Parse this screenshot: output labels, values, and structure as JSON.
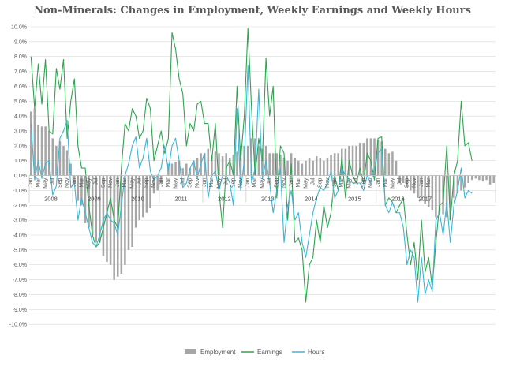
{
  "chart_data": {
    "type": "bar+line",
    "title": "Non-Minerals: Changes in Employment, Weekly Earnings and Weekly Hours",
    "ylabel": "",
    "xlabel": "",
    "ylim": [
      -0.11,
      0.1
    ],
    "ytick_values": [
      0.1,
      0.09,
      0.08,
      0.07,
      0.06,
      0.05,
      0.04,
      0.03,
      0.02,
      0.01,
      0.0,
      -0.01,
      -0.02,
      -0.03,
      -0.04,
      -0.05,
      -0.06,
      -0.07,
      -0.08,
      -0.09,
      -0.1
    ],
    "ytick_labels": [
      "10.0%",
      "9.0%",
      "8.0%",
      "7.0%",
      "6.0%",
      "5.0%",
      "4.0%",
      "3.0%",
      "2.0%",
      "1.0%",
      "0.0%",
      "-1.0%",
      "-2.0%",
      "-3.0%",
      "-4.0%",
      "-5.0%",
      "-6.0%",
      "-7.0%",
      "-8.0%",
      "-9.0%",
      "-10.0%"
    ],
    "months": [
      "Jan",
      "Mar",
      "May",
      "Jul",
      "Sep",
      "Nov"
    ],
    "month_label_indices": [
      0,
      2,
      4,
      6,
      8,
      10
    ],
    "years": [
      "2008",
      "2009",
      "2010",
      "2011",
      "2012",
      "2013",
      "2014",
      "2015",
      "2016",
      "2017"
    ],
    "months_in_year": [
      12,
      12,
      12,
      12,
      12,
      12,
      12,
      12,
      12,
      3
    ],
    "legend": [
      "Employment",
      "Earnings",
      "Hours"
    ],
    "legend_position": "bottom",
    "colors": {
      "Employment": "#a6a6a6",
      "Earnings": "#2ea44f",
      "Hours": "#3db5d6",
      "grid": "#d9d9d9",
      "axis": "#bfbfbf"
    },
    "series": [
      {
        "name": "Employment",
        "kind": "bar",
        "values": [
          4.3,
          4.5,
          3.4,
          3.3,
          3.3,
          3.0,
          2.5,
          2.0,
          2.3,
          2.0,
          1.7,
          0.8,
          -0.5,
          -1.7,
          -2.0,
          -3.2,
          -3.5,
          -4.0,
          -4.5,
          -4.5,
          -5.4,
          -5.8,
          -6.0,
          -7.0,
          -6.8,
          -6.6,
          -6.0,
          -5.0,
          -4.8,
          -3.5,
          -3.0,
          -2.8,
          -2.5,
          -2.2,
          -1.2,
          -1.0,
          -0.5,
          0.0,
          0.8,
          0.8,
          0.9,
          1.0,
          0.5,
          0.8,
          0.5,
          1.0,
          1.2,
          1.5,
          1.5,
          1.8,
          1.3,
          1.6,
          1.5,
          1.3,
          1.5,
          1.2,
          1.4,
          1.6,
          2.0,
          2.0,
          2.0,
          2.5,
          2.5,
          2.0,
          1.8,
          2.0,
          1.5,
          1.5,
          1.5,
          1.4,
          1.2,
          1.0,
          1.5,
          1.2,
          1.0,
          0.8,
          1.0,
          1.2,
          1.0,
          1.3,
          1.2,
          1.0,
          1.2,
          1.4,
          1.5,
          1.5,
          1.8,
          1.8,
          2.0,
          2.0,
          2.0,
          2.2,
          2.2,
          2.5,
          2.5,
          2.5,
          2.4,
          2.3,
          1.8,
          1.5,
          1.6,
          1.0,
          -0.5,
          -0.5,
          -0.8,
          -1.0,
          -1.2,
          -1.5,
          -1.7,
          -1.9,
          -2.1,
          -2.3,
          -2.8,
          -2.5,
          -2.6,
          -2.8,
          -3.0,
          -1.5,
          -1.2,
          -1.0,
          -0.8,
          -0.5,
          -0.3,
          -0.2,
          -0.3,
          -0.4,
          -0.3,
          -0.6,
          -0.5
        ]
      },
      {
        "name": "Earnings",
        "kind": "line",
        "values": [
          8.0,
          4.5,
          7.5,
          4.8,
          7.8,
          3.0,
          2.8,
          7.2,
          5.8,
          7.8,
          2.5,
          5.0,
          6.5,
          2.0,
          0.5,
          0.5,
          -2.0,
          -4.0,
          -4.8,
          -4.5,
          -3.5,
          -2.5,
          -1.5,
          -3.0,
          -3.5,
          0.5,
          3.5,
          3.0,
          4.5,
          4.0,
          2.5,
          3.0,
          5.2,
          4.5,
          1.0,
          2.0,
          3.0,
          1.5,
          2.5,
          9.6,
          8.5,
          6.5,
          5.5,
          2.0,
          3.5,
          3.0,
          4.8,
          5.0,
          3.5,
          3.5,
          1.0,
          3.5,
          -1.0,
          -3.5,
          0.5,
          1.0,
          0.0,
          6.0,
          1.0,
          4.0,
          9.9,
          4.5,
          0.0,
          2.5,
          1.0,
          7.9,
          4.0,
          6.0,
          -1.5,
          2.0,
          1.5,
          -3.0,
          0.8,
          -4.5,
          -4.2,
          -5.0,
          -8.5,
          -6.0,
          -5.5,
          -3.0,
          -4.5,
          -2.0,
          -3.5,
          -2.5,
          0.0,
          -1.0,
          1.2,
          -1.5,
          1.0,
          0.0,
          -0.5,
          0.5,
          -0.5,
          1.5,
          1.0,
          -0.3,
          2.5,
          2.6,
          -2.0,
          -1.5,
          -1.8,
          -2.5,
          -2.0,
          -1.5,
          -4.0,
          -6.0,
          -4.5,
          -7.0,
          -3.0,
          -6.5,
          -5.5,
          -7.5,
          -4.5,
          -2.0,
          -1.8,
          2.0,
          -3.0,
          0.0,
          1.0,
          5.0,
          2.0,
          2.2,
          1.0
        ]
      },
      {
        "name": "Hours",
        "kind": "line",
        "values": [
          3.5,
          -0.3,
          1.0,
          -0.2,
          0.8,
          1.0,
          -1.3,
          -0.7,
          2.5,
          3.0,
          3.7,
          -0.8,
          -0.5,
          -3.0,
          -1.5,
          -2.5,
          -3.5,
          -4.5,
          -4.8,
          -4.0,
          -3.0,
          -2.5,
          -3.0,
          -3.2,
          -4.0,
          -2.0,
          0.0,
          0.8,
          2.0,
          2.6,
          0.5,
          1.2,
          2.5,
          0.3,
          -0.3,
          0.0,
          0.5,
          2.0,
          0.3,
          2.0,
          2.5,
          1.0,
          -0.8,
          -0.5,
          0.5,
          1.0,
          -0.2,
          0.8,
          1.5,
          -1.5,
          0.0,
          0.3,
          -1.0,
          0.0,
          0.0,
          -0.5,
          -2.0,
          4.5,
          -1.0,
          1.0,
          7.4,
          -0.5,
          0.5,
          5.8,
          -0.2,
          1.0,
          -0.5,
          -2.5,
          -1.0,
          0.5,
          -4.5,
          -2.0,
          -1.0,
          -3.0,
          -2.5,
          -4.5,
          -5.5,
          -4.0,
          -2.5,
          -1.5,
          -0.8,
          -1.0,
          -0.5,
          0.3,
          -1.5,
          -1.0,
          0.5,
          0.0,
          -0.3,
          -0.5,
          -0.5,
          -0.5,
          -1.0,
          0.0,
          -0.5,
          0.5,
          1.5,
          1.8,
          -2.0,
          -2.5,
          -1.8,
          -2.5,
          -2.5,
          -3.5,
          -6.0,
          -5.0,
          -5.5,
          -8.5,
          -5.5,
          -8.0,
          -7.0,
          -7.8,
          -3.0,
          -2.5,
          -4.0,
          -1.8,
          -4.5,
          -2.0,
          -1.0,
          0.5,
          -1.5,
          -1.0,
          -1.2
        ]
      }
    ]
  }
}
